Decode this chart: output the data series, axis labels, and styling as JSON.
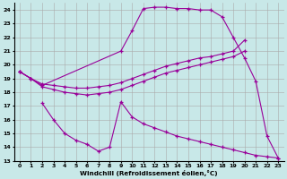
{
  "xlabel": "Windchill (Refroidissement éolien,°C)",
  "background_color": "#c8e8e8",
  "line_color": "#990099",
  "grid_color": "#aaaaaa",
  "xlim_min": -0.5,
  "xlim_max": 23.5,
  "ylim_min": 13,
  "ylim_max": 24.5,
  "xticks": [
    0,
    1,
    2,
    3,
    4,
    5,
    6,
    7,
    8,
    9,
    10,
    11,
    12,
    13,
    14,
    15,
    16,
    17,
    18,
    19,
    20,
    21,
    22,
    23
  ],
  "yticks": [
    13,
    14,
    15,
    16,
    17,
    18,
    19,
    20,
    21,
    22,
    23,
    24
  ],
  "curve_A_x": [
    0,
    1,
    2,
    3,
    4,
    5,
    6,
    7,
    8,
    9,
    10,
    11,
    12,
    13,
    14,
    15,
    16,
    17,
    18,
    19,
    20
  ],
  "curve_A_y": [
    19.5,
    19.0,
    18.6,
    18.5,
    18.4,
    18.3,
    18.3,
    18.4,
    18.5,
    18.7,
    19.0,
    19.3,
    19.6,
    19.9,
    20.1,
    20.3,
    20.5,
    20.6,
    20.8,
    21.0,
    21.8
  ],
  "curve_B_x": [
    0,
    1,
    2,
    3,
    4,
    5,
    6,
    7,
    8,
    9,
    10,
    11,
    12,
    13,
    14,
    15,
    16,
    17,
    18,
    19,
    20
  ],
  "curve_B_y": [
    19.5,
    19.0,
    18.4,
    18.2,
    18.0,
    17.9,
    17.8,
    17.9,
    18.0,
    18.2,
    18.5,
    18.8,
    19.1,
    19.4,
    19.6,
    19.8,
    20.0,
    20.2,
    20.4,
    20.6,
    21.0
  ],
  "curve_C_x": [
    0,
    1,
    2,
    9,
    10,
    11,
    12,
    13,
    14,
    15,
    16,
    17,
    18,
    19,
    20,
    21,
    22,
    23
  ],
  "curve_C_y": [
    19.5,
    19.0,
    18.5,
    21.0,
    22.5,
    24.1,
    24.2,
    24.2,
    24.1,
    24.1,
    24.0,
    24.0,
    23.5,
    22.0,
    20.5,
    18.8,
    14.8,
    13.2
  ],
  "curve_D_x": [
    2,
    3,
    4,
    5,
    6,
    7,
    8,
    9,
    10,
    11,
    12,
    13,
    14,
    15,
    16,
    17,
    18,
    19,
    20,
    21,
    22,
    23
  ],
  "curve_D_y": [
    17.2,
    16.0,
    15.0,
    14.5,
    14.2,
    13.7,
    14.0,
    17.3,
    16.2,
    15.7,
    15.4,
    15.1,
    14.8,
    14.6,
    14.4,
    14.2,
    14.0,
    13.8,
    13.6,
    13.4,
    13.3,
    13.2
  ]
}
